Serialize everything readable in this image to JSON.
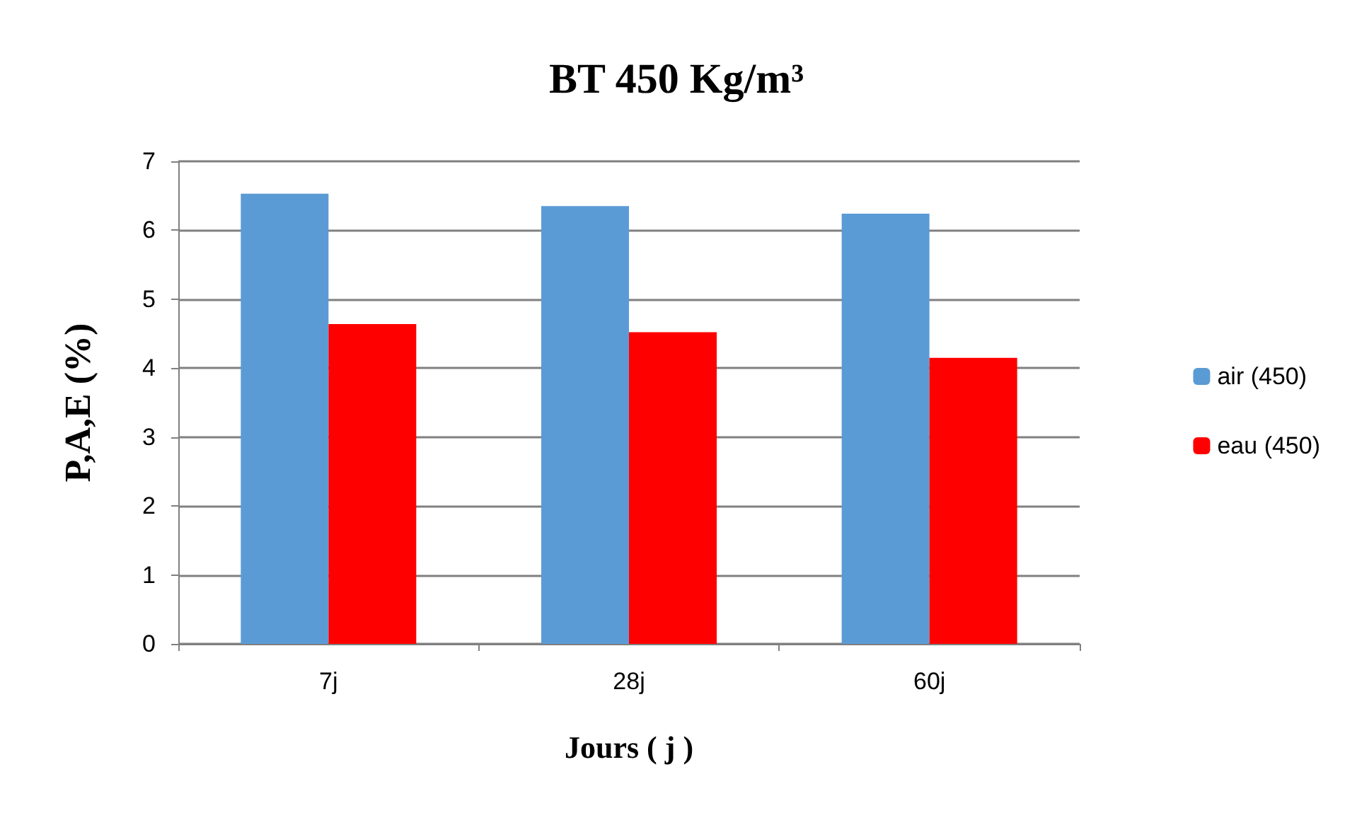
{
  "chart_data": {
    "type": "bar",
    "title": "BT 450 Kg/m³",
    "xlabel": "Jours ( j )",
    "ylabel": "P,A,E (%)",
    "categories": [
      "7j",
      "28j",
      "60j"
    ],
    "series": [
      {
        "name": "air (450)",
        "color": "#5b9bd5",
        "values": [
          6.53,
          6.35,
          6.24
        ]
      },
      {
        "name": "eau (450)",
        "color": "#ff0000",
        "values": [
          4.64,
          4.52,
          4.15
        ]
      }
    ],
    "ylim": [
      0,
      7
    ],
    "yticks": [
      0,
      1,
      2,
      3,
      4,
      5,
      6,
      7
    ],
    "grid": "y",
    "legend": "right"
  }
}
